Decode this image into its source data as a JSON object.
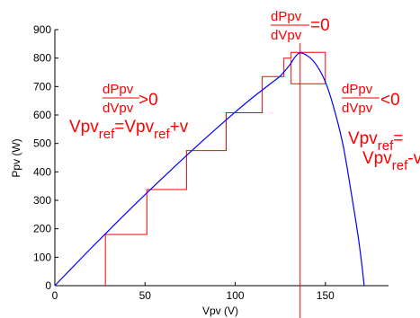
{
  "chart_data": {
    "type": "line",
    "title": "",
    "xlabel": "Vpv (V)",
    "ylabel": "Ppv (W)",
    "xlim": [
      0,
      185
    ],
    "ylim": [
      0,
      900
    ],
    "grid": false,
    "x_ticks": [
      0,
      50,
      100,
      150
    ],
    "y_ticks": [
      0,
      100,
      200,
      300,
      400,
      500,
      600,
      700,
      800,
      900
    ],
    "colors": {
      "curve": "#0000ff",
      "steps": "#ff0000",
      "annotation": "#ff0000",
      "axes": "#000000"
    },
    "series": [
      {
        "values_x": [
          0,
          10,
          20,
          30,
          40,
          50,
          60,
          70,
          80,
          90,
          100,
          110,
          120,
          125,
          130,
          135,
          140,
          145,
          150,
          155,
          160,
          165,
          168,
          170,
          171.5
        ],
        "values_y": [
          0,
          66,
          131,
          195,
          258,
          320,
          380,
          440,
          498,
          555,
          610,
          663,
          712,
          737,
          774,
          816,
          808,
          776,
          716,
          618,
          487,
          300,
          180,
          85,
          0
        ]
      }
    ],
    "perturb_steps": [
      {
        "x": [
          28,
          28,
          51,
          51,
          73,
          73,
          95,
          95,
          115,
          115,
          127,
          127,
          131,
          131,
          150,
          150,
          131,
          131
        ],
        "y": [
          0,
          180,
          180,
          338,
          338,
          475,
          475,
          608,
          608,
          735,
          735,
          800,
          800,
          820,
          820,
          710,
          710,
          795
        ]
      }
    ],
    "mpp_marker_x": 136,
    "annotations": {
      "slope_left": {
        "num": "dPpv",
        "den": "dVpv",
        "rel": ">0"
      },
      "rule_left": {
        "a": "Vpv",
        "sub_a": "ref",
        "eq": "=Vpv",
        "sub_b": "ref",
        "tail": "+v"
      },
      "slope_top": {
        "num": "dPpv",
        "den": "dVpv",
        "rel": "=0"
      },
      "slope_right": {
        "num": "dPpv",
        "den": "dVpv",
        "rel": "<0"
      },
      "rule_right": {
        "a": "Vpv",
        "sub_a": "ref",
        "eq": "=",
        "b": "Vpv",
        "sub_b": "ref",
        "tail": "-v"
      }
    }
  }
}
